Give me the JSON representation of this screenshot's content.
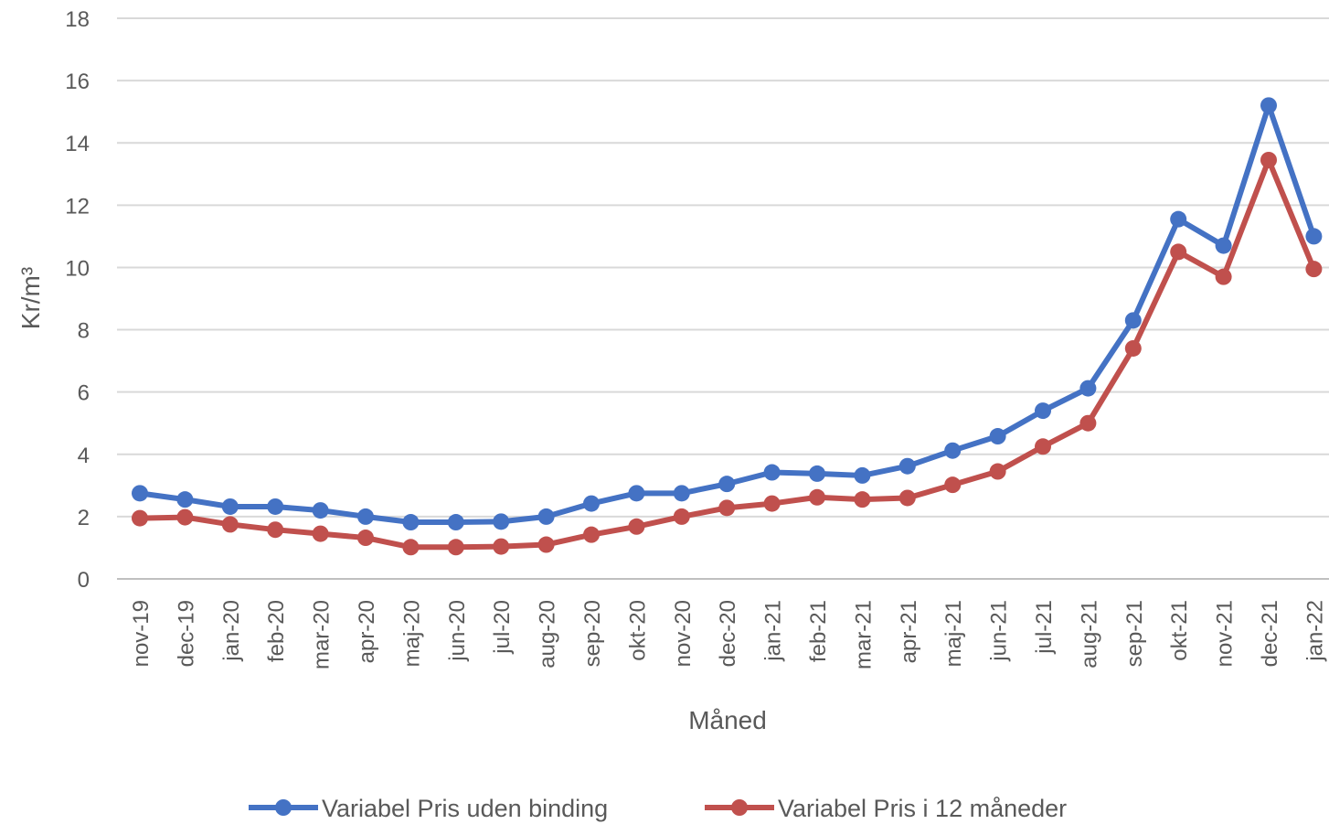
{
  "chart_data": {
    "type": "line",
    "xlabel": "Måned",
    "ylabel": "Kr/m³",
    "ylim": [
      0,
      18
    ],
    "yticks": [
      "0",
      "2",
      "4",
      "6",
      "8",
      "10",
      "12",
      "14",
      "16",
      "18"
    ],
    "grid": true,
    "legend_position": "bottom",
    "categories": [
      "nov-19",
      "dec-19",
      "jan-20",
      "feb-20",
      "mar-20",
      "apr-20",
      "maj-20",
      "jun-20",
      "jul-20",
      "aug-20",
      "sep-20",
      "okt-20",
      "nov-20",
      "dec-20",
      "jan-21",
      "feb-21",
      "mar-21",
      "apr-21",
      "maj-21",
      "jun-21",
      "jul-21",
      "aug-21",
      "sep-21",
      "okt-21",
      "nov-21",
      "dec-21",
      "jan-22"
    ],
    "series": [
      {
        "name": "Variabel Pris uden binding",
        "color": "#4472c4",
        "values": [
          2.75,
          2.55,
          2.32,
          2.32,
          2.2,
          2.0,
          1.82,
          1.82,
          1.84,
          2.0,
          2.42,
          2.75,
          2.75,
          3.05,
          3.42,
          3.38,
          3.32,
          3.62,
          4.12,
          4.58,
          5.4,
          6.12,
          8.3,
          11.55,
          10.7,
          15.2,
          11.0
        ]
      },
      {
        "name": "Variabel Pris i 12 måneder",
        "color": "#c0504d",
        "values": [
          1.95,
          1.98,
          1.75,
          1.58,
          1.45,
          1.32,
          1.02,
          1.02,
          1.04,
          1.1,
          1.42,
          1.68,
          2.0,
          2.28,
          2.42,
          2.62,
          2.55,
          2.6,
          3.02,
          3.45,
          4.25,
          5.0,
          7.4,
          10.5,
          9.7,
          13.45,
          9.95
        ]
      }
    ]
  }
}
